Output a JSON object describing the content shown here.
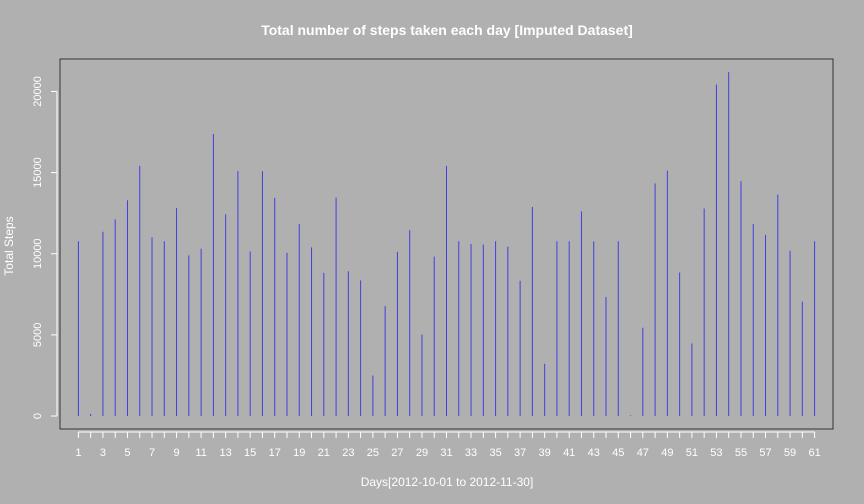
{
  "chart_data": {
    "type": "bar",
    "title": "Total number of steps taken each day [Imputed Dataset]",
    "xlabel": "Days[2012-10-01 to 2012-11-30]",
    "ylabel": "Total Steps",
    "x": [
      1,
      2,
      3,
      4,
      5,
      6,
      7,
      8,
      9,
      10,
      11,
      12,
      13,
      14,
      15,
      16,
      17,
      18,
      19,
      20,
      21,
      22,
      23,
      24,
      25,
      26,
      27,
      28,
      29,
      30,
      31,
      32,
      33,
      34,
      35,
      36,
      37,
      38,
      39,
      40,
      41,
      42,
      43,
      44,
      45,
      46,
      47,
      48,
      49,
      50,
      51,
      52,
      53,
      54,
      55,
      56,
      57,
      58,
      59,
      60,
      61
    ],
    "values": [
      10766,
      126,
      11352,
      12116,
      13294,
      15420,
      11015,
      10766,
      12811,
      9900,
      10304,
      17382,
      12426,
      15098,
      10139,
      15084,
      13452,
      10056,
      11829,
      10395,
      8821,
      13460,
      8918,
      8355,
      2492,
      6778,
      10119,
      11458,
      5018,
      9819,
      15414,
      10766,
      10600,
      10571,
      10766,
      10439,
      8334,
      12883,
      3219,
      10766,
      10766,
      12608,
      10765,
      7336,
      10766,
      41,
      5441,
      14339,
      15110,
      8841,
      4472,
      12787,
      20427,
      21194,
      14478,
      11834,
      11162,
      13646,
      10183,
      7047,
      10766
    ],
    "xticks": [
      "1",
      "3",
      "5",
      "7",
      "9",
      "11",
      "13",
      "15",
      "17",
      "19",
      "21",
      "23",
      "25",
      "27",
      "29",
      "31",
      "33",
      "35",
      "37",
      "39",
      "41",
      "43",
      "45",
      "47",
      "49",
      "51",
      "53",
      "55",
      "57",
      "59",
      "61"
    ],
    "yticks": [
      "0",
      "5000",
      "10000",
      "15000",
      "20000"
    ],
    "xlim": [
      -0.5,
      62.5
    ],
    "ylim": [
      -800,
      22000
    ],
    "bar_color": "#4040e0",
    "background": "#b0b0b0",
    "foreground": "#ffffff",
    "frame_color": "#333333"
  }
}
